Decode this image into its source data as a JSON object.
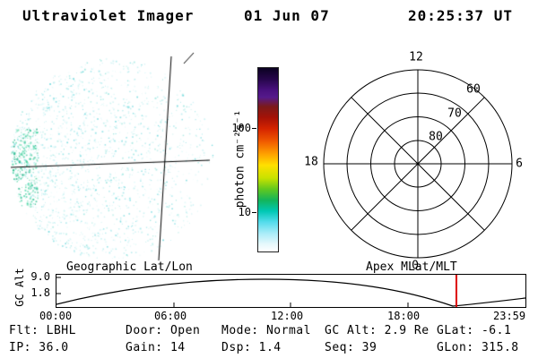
{
  "header": {
    "title": "Ultraviolet Imager",
    "date": "01 Jun 07",
    "time": "20:25:37 UT"
  },
  "colorbar": {
    "label": "photon cm⁻²s⁻¹",
    "tick_top": "100",
    "tick_bottom": "10",
    "stops": [
      {
        "p": "0%",
        "c": "#0b0221"
      },
      {
        "p": "6%",
        "c": "#26064a"
      },
      {
        "p": "12%",
        "c": "#49107e"
      },
      {
        "p": "16%",
        "c": "#551a8b"
      },
      {
        "p": "21%",
        "c": "#7b1a1a"
      },
      {
        "p": "27%",
        "c": "#a51207"
      },
      {
        "p": "33%",
        "c": "#d42300"
      },
      {
        "p": "40%",
        "c": "#f05a00"
      },
      {
        "p": "47%",
        "c": "#ffa200"
      },
      {
        "p": "53%",
        "c": "#ffe000"
      },
      {
        "p": "60%",
        "c": "#c8e200"
      },
      {
        "p": "66%",
        "c": "#62c81e"
      },
      {
        "p": "72%",
        "c": "#14b45a"
      },
      {
        "p": "78%",
        "c": "#00c8b4"
      },
      {
        "p": "84%",
        "c": "#55dcec"
      },
      {
        "p": "90%",
        "c": "#a8ecf8"
      },
      {
        "p": "96%",
        "c": "#e6f8fc"
      },
      {
        "p": "100%",
        "c": "#ffffff"
      }
    ]
  },
  "uv_image": {
    "speckle_colors": [
      "#c9f2f4",
      "#aeeaee",
      "#8fe2e6",
      "#74dade",
      "#bff0ee",
      "#d9f7f8",
      "#9be6de"
    ],
    "speckle_green_colors": [
      "#3fcf9f",
      "#54d9a8",
      "#2fc08f",
      "#1fae86",
      "#6fdcb4"
    ],
    "grid_color": "#000000"
  },
  "polar": {
    "hour_top": "12",
    "hour_right": "6",
    "hour_bottom": "0",
    "hour_left": "18",
    "rings": [
      "60",
      "70",
      "80"
    ]
  },
  "captions": {
    "left": "Geographic Lat/Lon",
    "right": "Apex MLat/MLT"
  },
  "timeline": {
    "ylabel": "GC Alt",
    "ytick_top": "9.0",
    "ytick_bottom": "1.8",
    "xticks": [
      "00:00",
      "06:00",
      "12:00",
      "18:00",
      "23:59"
    ],
    "marker_color": "#dd0000"
  },
  "status": {
    "row1": [
      "Flt: LBHL",
      "Door: Open",
      "Mode: Normal",
      "GC Alt: 2.9 Re",
      "GLat: -6.1"
    ],
    "row2": [
      "IP: 36.0",
      "Gain: 14",
      "Dsp: 1.4",
      "Seq: 39",
      "GLon: 315.8"
    ]
  }
}
